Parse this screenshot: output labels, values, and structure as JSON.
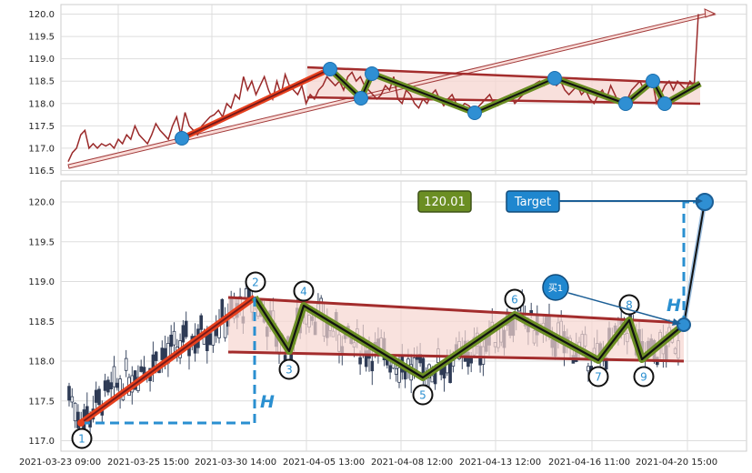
{
  "chart_data": [
    {
      "type": "line",
      "panel": "overview",
      "ylim": [
        116.5,
        120.0
      ],
      "yticks": [
        "120.0",
        "119.5",
        "119.0",
        "118.5",
        "118.0",
        "117.5",
        "117.0",
        "116.5"
      ],
      "grid": true,
      "series": [
        {
          "values": [
            116.7,
            116.9,
            117.0,
            117.3,
            117.4,
            117.0,
            117.1,
            117.0,
            117.1,
            117.05,
            117.1,
            117.0,
            117.2,
            117.1,
            117.3,
            117.2,
            117.5,
            117.3,
            117.2,
            117.1,
            117.3,
            117.55,
            117.4,
            117.3,
            117.2,
            117.5,
            117.7,
            117.3,
            117.8,
            117.5,
            117.4,
            117.3,
            117.5,
            117.6,
            117.7,
            117.75,
            117.85,
            117.7,
            118.0,
            117.9,
            118.2,
            118.1,
            118.6,
            118.3,
            118.5,
            118.2,
            118.4,
            118.6,
            118.3,
            118.1,
            118.5,
            118.2,
            118.65,
            118.4,
            118.3,
            118.2,
            118.4,
            118.0,
            118.2,
            118.1,
            118.3,
            118.4,
            118.6,
            118.5,
            118.4,
            118.5,
            118.3,
            118.6,
            118.7,
            118.5,
            118.6,
            118.4,
            118.3,
            118.2,
            118.1,
            118.2,
            118.4,
            118.3,
            118.6,
            118.1,
            118.0,
            118.3,
            118.2,
            118.0,
            117.9,
            118.1,
            118.0,
            118.2,
            118.3,
            118.1,
            117.95,
            118.1,
            118.2,
            118.0,
            117.9,
            118.0,
            117.95,
            117.85,
            117.9,
            118.0,
            118.1,
            118.2,
            118.0,
            117.95,
            118.1,
            118.05,
            118.2,
            118.0,
            118.1,
            118.2,
            118.3,
            118.35,
            118.45,
            118.5,
            118.4,
            118.5,
            118.6,
            118.4,
            118.5,
            118.3,
            118.2,
            118.3,
            118.4,
            118.2,
            118.3,
            118.1,
            118.0,
            118.2,
            118.3,
            118.1,
            118.4,
            118.2,
            118.0,
            117.9,
            118.1,
            118.3,
            118.4,
            118.5,
            118.3,
            118.4,
            118.5,
            118.0,
            118.2,
            118.4,
            118.5,
            118.3,
            118.5,
            118.4,
            118.3,
            118.5,
            118.4,
            120.0
          ]
        }
      ]
    },
    {
      "type": "candlestick",
      "panel": "main",
      "ylim": [
        116.9,
        120.3
      ],
      "yticks": [
        "120.0",
        "119.5",
        "119.0",
        "118.5",
        "118.0",
        "117.5",
        "117.0"
      ],
      "xticks": [
        "2021-03-23 09:00",
        "2021-03-25 15:00",
        "2021-03-30 14:00",
        "2021-04-05 13:00",
        "2021-04-08 12:00",
        "2021-04-13 12:00",
        "2021-04-16 11:00",
        "2021-04-20 15:00"
      ],
      "grid": true,
      "pivots": [
        {
          "label": "1",
          "value": 117.2
        },
        {
          "label": "2",
          "value": 118.8
        },
        {
          "label": "3",
          "value": 118.1
        },
        {
          "label": "4",
          "value": 118.7
        },
        {
          "label": "5",
          "value": 117.8
        },
        {
          "label": "6",
          "value": 118.57
        },
        {
          "label": "7",
          "value": 117.98
        },
        {
          "label": "8",
          "value": 118.5
        },
        {
          "label": "9",
          "value": 118.0
        }
      ],
      "annotations": {
        "price_box": "120.01",
        "target_label": "Target",
        "target_value": 120.01,
        "buy_label": "买1",
        "buy_value": 118.45,
        "height_label": "H"
      },
      "colors": {
        "zigzag": "#6b8e23",
        "impulse": "#e8411e",
        "channel": "#a32c2c",
        "measure": "#2a8fd0",
        "price_box": "#6b8e23",
        "target_box": "#1f87cf"
      }
    }
  ]
}
